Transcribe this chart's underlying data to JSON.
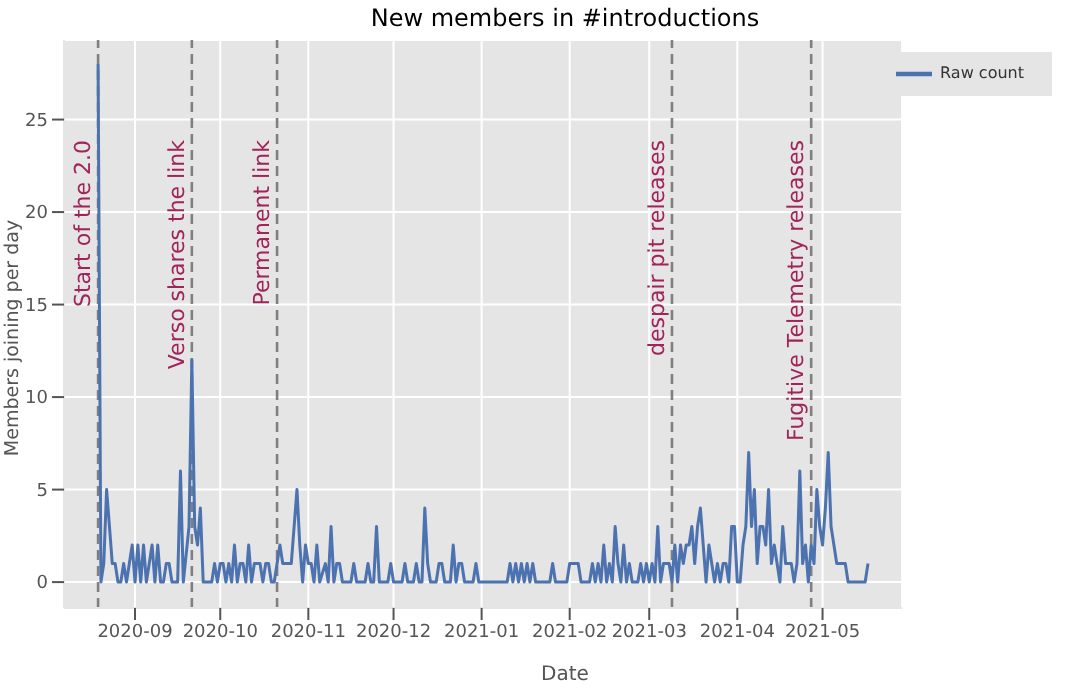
{
  "chart_data": {
    "type": "line",
    "title": "New members in #introductions",
    "xlabel": "Date",
    "ylabel": "Members joining per day",
    "x": [
      "2020-08-19",
      "2020-08-20",
      "2020-08-21",
      "2020-08-22",
      "2020-08-23",
      "2020-08-24",
      "2020-08-25",
      "2020-08-26",
      "2020-08-27",
      "2020-08-28",
      "2020-08-29",
      "2020-08-30",
      "2020-08-31",
      "2020-09-01",
      "2020-09-02",
      "2020-09-03",
      "2020-09-04",
      "2020-09-05",
      "2020-09-06",
      "2020-09-07",
      "2020-09-08",
      "2020-09-09",
      "2020-09-10",
      "2020-09-11",
      "2020-09-12",
      "2020-09-13",
      "2020-09-14",
      "2020-09-16",
      "2020-09-17",
      "2020-09-18",
      "2020-09-20",
      "2020-09-21",
      "2020-09-22",
      "2020-09-23",
      "2020-09-24",
      "2020-09-25",
      "2020-09-28",
      "2020-09-29",
      "2020-09-30",
      "2020-10-01",
      "2020-10-02",
      "2020-10-03",
      "2020-10-04",
      "2020-10-05",
      "2020-10-06",
      "2020-10-07",
      "2020-10-08",
      "2020-10-09",
      "2020-10-10",
      "2020-10-11",
      "2020-10-12",
      "2020-10-13",
      "2020-10-14",
      "2020-10-15",
      "2020-10-16",
      "2020-10-17",
      "2020-10-18",
      "2020-10-19",
      "2020-10-20",
      "2020-10-21",
      "2020-10-22",
      "2020-10-23",
      "2020-10-26",
      "2020-10-27",
      "2020-10-28",
      "2020-10-29",
      "2020-10-30",
      "2020-10-31",
      "2020-11-01",
      "2020-11-02",
      "2020-11-03",
      "2020-11-04",
      "2020-11-05",
      "2020-11-07",
      "2020-11-08",
      "2020-11-09",
      "2020-11-10",
      "2020-11-11",
      "2020-11-12",
      "2020-11-13",
      "2020-11-16",
      "2020-11-17",
      "2020-11-18",
      "2020-11-21",
      "2020-11-22",
      "2020-11-23",
      "2020-11-24",
      "2020-11-25",
      "2020-11-26",
      "2020-11-29",
      "2020-11-30",
      "2020-12-01",
      "2020-12-04",
      "2020-12-05",
      "2020-12-06",
      "2020-12-08",
      "2020-12-09",
      "2020-12-10",
      "2020-12-11",
      "2020-12-12",
      "2020-12-13",
      "2020-12-14",
      "2020-12-16",
      "2020-12-17",
      "2020-12-18",
      "2020-12-19",
      "2020-12-21",
      "2020-12-22",
      "2020-12-23",
      "2020-12-24",
      "2020-12-25",
      "2020-12-26",
      "2020-12-29",
      "2020-12-30",
      "2020-12-31",
      "2021-01-10",
      "2021-01-11",
      "2021-01-12",
      "2021-01-13",
      "2021-01-14",
      "2021-01-15",
      "2021-01-16",
      "2021-01-17",
      "2021-01-18",
      "2021-01-19",
      "2021-01-20",
      "2021-01-25",
      "2021-01-26",
      "2021-01-27",
      "2021-01-31",
      "2021-02-01",
      "2021-02-04",
      "2021-02-05",
      "2021-02-08",
      "2021-02-09",
      "2021-02-10",
      "2021-02-11",
      "2021-02-12",
      "2021-02-13",
      "2021-02-14",
      "2021-02-15",
      "2021-02-16",
      "2021-02-17",
      "2021-02-18",
      "2021-02-19",
      "2021-02-20",
      "2021-02-21",
      "2021-02-22",
      "2021-02-23",
      "2021-02-25",
      "2021-02-26",
      "2021-02-27",
      "2021-02-28",
      "2021-03-01",
      "2021-03-02",
      "2021-03-03",
      "2021-03-04",
      "2021-03-05",
      "2021-03-06",
      "2021-03-08",
      "2021-03-09",
      "2021-03-10",
      "2021-03-11",
      "2021-03-12",
      "2021-03-13",
      "2021-03-14",
      "2021-03-15",
      "2021-03-16",
      "2021-03-17",
      "2021-03-18",
      "2021-03-19",
      "2021-03-20",
      "2021-03-21",
      "2021-03-22",
      "2021-03-23",
      "2021-03-24",
      "2021-03-25",
      "2021-03-26",
      "2021-03-27",
      "2021-03-28",
      "2021-03-29",
      "2021-03-30",
      "2021-03-31",
      "2021-04-01",
      "2021-04-02",
      "2021-04-03",
      "2021-04-04",
      "2021-04-05",
      "2021-04-06",
      "2021-04-07",
      "2021-04-08",
      "2021-04-09",
      "2021-04-10",
      "2021-04-11",
      "2021-04-12",
      "2021-04-13",
      "2021-04-14",
      "2021-04-15",
      "2021-04-16",
      "2021-04-17",
      "2021-04-18",
      "2021-04-20",
      "2021-04-21",
      "2021-04-22",
      "2021-04-23",
      "2021-04-24",
      "2021-04-25",
      "2021-04-26",
      "2021-04-27",
      "2021-04-28",
      "2021-04-29",
      "2021-04-30",
      "2021-05-01",
      "2021-05-02",
      "2021-05-03",
      "2021-05-04",
      "2021-05-05",
      "2021-05-06",
      "2021-05-09",
      "2021-05-10",
      "2021-05-11",
      "2021-05-14",
      "2021-05-15",
      "2021-05-16",
      "2021-05-17"
    ],
    "series": [
      {
        "name": "Raw count",
        "color": "#4c72b0",
        "values": [
          28,
          0,
          1,
          5,
          3,
          1,
          1,
          0,
          0,
          1,
          0,
          1,
          2,
          0,
          2,
          0,
          2,
          0,
          1,
          2,
          0,
          2,
          0,
          0,
          1,
          1,
          0,
          0,
          6,
          0,
          3,
          12,
          3,
          2,
          4,
          0,
          0,
          1,
          0,
          1,
          1,
          0,
          1,
          0,
          2,
          0,
          1,
          1,
          0,
          2,
          0,
          1,
          1,
          1,
          0,
          1,
          1,
          0,
          0,
          1,
          2,
          1,
          1,
          3,
          5,
          2,
          0,
          2,
          1,
          1,
          0,
          2,
          0,
          1,
          0,
          3,
          0,
          1,
          1,
          0,
          0,
          1,
          0,
          0,
          1,
          0,
          0,
          3,
          0,
          0,
          1,
          0,
          0,
          1,
          0,
          0,
          1,
          0,
          0,
          4,
          1,
          0,
          0,
          1,
          1,
          0,
          0,
          2,
          0,
          1,
          1,
          0,
          0,
          1,
          0,
          0,
          1,
          0,
          1,
          0,
          1,
          0,
          1,
          0,
          1,
          0,
          0,
          1,
          0,
          0,
          1,
          1,
          0,
          0,
          1,
          0,
          1,
          0,
          2,
          0,
          1,
          0,
          3,
          1,
          0,
          2,
          0,
          1,
          0,
          0,
          1,
          0,
          1,
          0,
          1,
          0,
          3,
          0,
          1,
          1,
          0,
          2,
          0,
          2,
          1,
          2,
          2,
          3,
          1,
          3,
          4,
          2,
          0,
          2,
          1,
          0,
          1,
          0,
          1,
          1,
          0,
          3,
          3,
          0,
          0,
          2,
          3,
          7,
          3,
          5,
          1,
          3,
          3,
          2,
          5,
          1,
          2,
          1,
          0,
          3,
          1,
          1,
          0,
          1,
          6,
          1,
          2,
          0,
          2,
          1,
          5,
          3,
          2,
          4,
          7,
          3,
          2,
          1,
          1,
          0,
          0,
          0,
          0,
          0,
          1
        ]
      }
    ],
    "xlim": [
      "2020-08-07",
      "2021-05-29"
    ],
    "ylim": [
      -1.4,
      29.3
    ],
    "xticks": [
      "2020-09",
      "2020-10",
      "2020-11",
      "2020-12",
      "2021-01",
      "2021-02",
      "2021-03",
      "2021-04",
      "2021-05"
    ],
    "yticks": [
      0,
      5,
      10,
      15,
      20,
      25
    ],
    "ref_lines": [
      {
        "axis": "x",
        "value": "2020-08-19",
        "label": "Start of the 2.0",
        "color": "#808080",
        "line_style": "dashed"
      },
      {
        "axis": "x",
        "value": "2020-09-21",
        "label": "Verso shares the link",
        "color": "#808080",
        "line_style": "dashed"
      },
      {
        "axis": "x",
        "value": "2020-10-21",
        "label": "Permanent link",
        "color": "#808080",
        "line_style": "dashed"
      },
      {
        "axis": "x",
        "value": "2021-03-09",
        "label": "despair pit releases",
        "color": "#808080",
        "line_style": "dashed"
      },
      {
        "axis": "x",
        "value": "2021-04-27",
        "label": "Fugitive Telemetry releases",
        "color": "#808080",
        "line_style": "dashed"
      }
    ],
    "grid": true,
    "legend": "top right",
    "line_style": "solid",
    "marker": "none"
  }
}
